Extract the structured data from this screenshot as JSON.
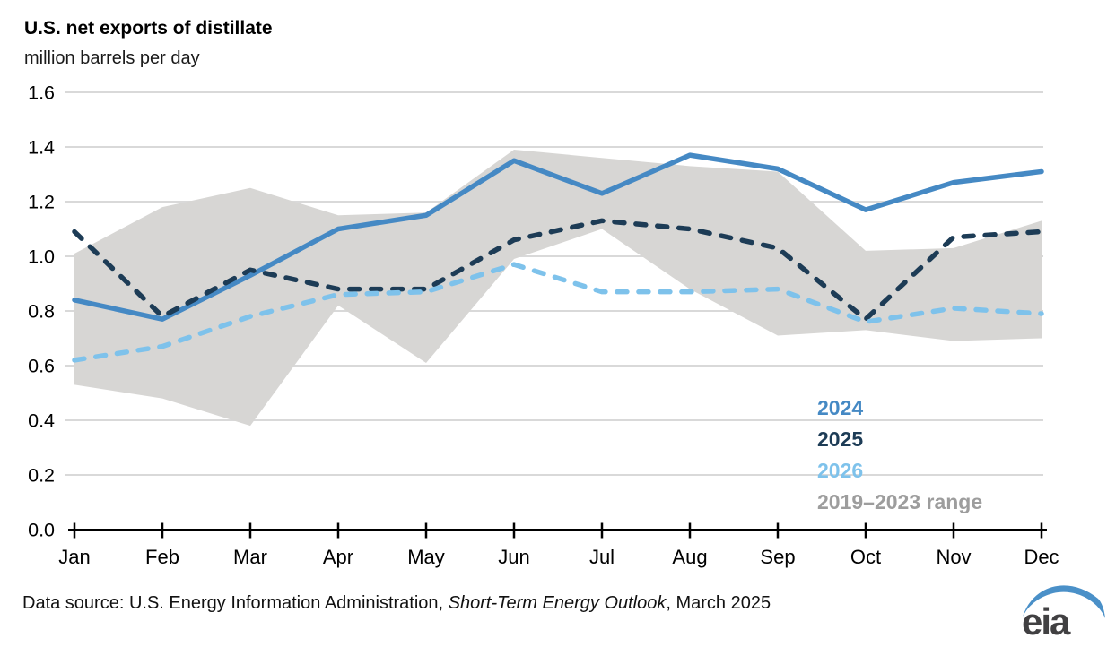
{
  "chart_data": {
    "type": "line",
    "title": "U.S. net exports of distillate",
    "subtitle": "million barrels per day",
    "categories": [
      "Jan",
      "Feb",
      "Mar",
      "Apr",
      "May",
      "Jun",
      "Jul",
      "Aug",
      "Sep",
      "Oct",
      "Nov",
      "Dec"
    ],
    "ylim": [
      0.0,
      1.6
    ],
    "ytick_labels": [
      "0.0",
      "0.2",
      "0.4",
      "0.6",
      "0.8",
      "1.0",
      "1.2",
      "1.4",
      "1.6"
    ],
    "grid": "horizontal",
    "legend_position": "inside-lower-right",
    "series": [
      {
        "name": "2024",
        "style": "solid",
        "color": "#4589c4",
        "values": [
          0.84,
          0.77,
          0.93,
          1.1,
          1.15,
          1.35,
          1.23,
          1.37,
          1.32,
          1.17,
          1.27,
          1.31
        ]
      },
      {
        "name": "2025",
        "style": "dashed",
        "color": "#1d3c56",
        "values": [
          1.09,
          0.78,
          0.95,
          0.88,
          0.88,
          1.06,
          1.13,
          1.1,
          1.03,
          0.77,
          1.07,
          1.09
        ]
      },
      {
        "name": "2026",
        "style": "dashed",
        "color": "#7ec2eb",
        "values": [
          0.62,
          0.67,
          0.78,
          0.86,
          0.87,
          0.97,
          0.87,
          0.87,
          0.88,
          0.76,
          0.81,
          0.79
        ]
      }
    ],
    "range_band": {
      "name": "2019–2023 range",
      "color": "#d7d6d4",
      "upper": [
        1.01,
        1.18,
        1.25,
        1.15,
        1.16,
        1.39,
        1.36,
        1.33,
        1.31,
        1.02,
        1.03,
        1.13
      ],
      "lower": [
        0.53,
        0.48,
        0.38,
        0.82,
        0.61,
        0.99,
        1.1,
        0.88,
        0.71,
        0.73,
        0.69,
        0.7
      ]
    },
    "legend": [
      {
        "label": "2024",
        "color": "#4589c4"
      },
      {
        "label": "2025",
        "color": "#1d3c56"
      },
      {
        "label": "2026",
        "color": "#7ec2eb"
      },
      {
        "label": "2019–2023 range",
        "color": "#9d9d9d"
      }
    ]
  },
  "footer": {
    "prefix": "Data source: U.S. Energy Information Administration, ",
    "publication": "Short-Term Energy Outlook",
    "suffix": ", March 2025"
  },
  "logo": {
    "text": "eia",
    "swoosh_color": "#4a90c8",
    "text_color": "#414042"
  }
}
